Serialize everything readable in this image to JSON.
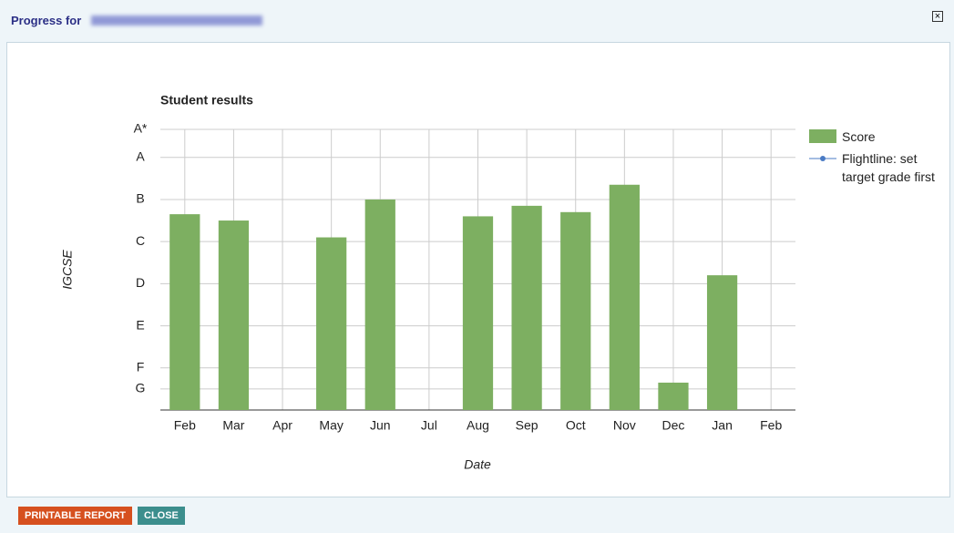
{
  "header": {
    "title": "Progress for"
  },
  "buttons": [
    "PRINTABLE REPORT",
    "CLOSE"
  ],
  "chart_data": {
    "type": "bar",
    "title": "Student results",
    "x_label": "Date",
    "y_label": "IGCSE",
    "categories": [
      "Feb",
      "Mar",
      "Apr",
      "May",
      "Jun",
      "Jul",
      "Aug",
      "Sep",
      "Oct",
      "Nov",
      "Dec",
      "Jan",
      "Feb"
    ],
    "series": [
      {
        "name": "Score",
        "color": "#7daf61",
        "values": [
          9.3,
          9.0,
          null,
          8.2,
          10.0,
          null,
          9.2,
          9.7,
          9.4,
          10.7,
          1.3,
          6.4,
          null
        ]
      },
      {
        "name": "Flightline: set target grade first",
        "color": "#4a7bc4",
        "values": [
          null,
          null,
          null,
          null,
          null,
          null,
          null,
          null,
          null,
          null,
          null,
          null,
          null
        ]
      }
    ],
    "ylim": [
      0,
      13.33
    ],
    "yticks": [
      {
        "value": 1,
        "label": "G"
      },
      {
        "value": 2,
        "label": "F"
      },
      {
        "value": 4,
        "label": "E"
      },
      {
        "value": 6,
        "label": "D"
      },
      {
        "value": 8,
        "label": "C"
      },
      {
        "value": 10,
        "label": "B"
      },
      {
        "value": 12,
        "label": "A"
      },
      {
        "value": 13.33,
        "label": "A*"
      }
    ],
    "grid": true,
    "legend": "right"
  }
}
